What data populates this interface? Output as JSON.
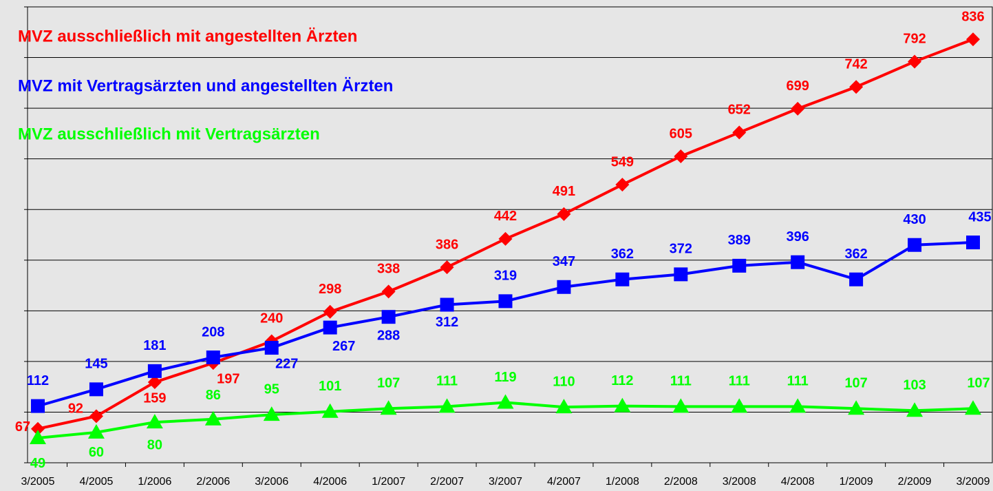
{
  "chart_data": {
    "type": "line",
    "categories": [
      "3/2005",
      "4/2005",
      "1/2006",
      "2/2006",
      "3/2006",
      "4/2006",
      "1/2007",
      "2/2007",
      "3/2007",
      "4/2007",
      "1/2008",
      "2/2008",
      "3/2008",
      "4/2008",
      "1/2009",
      "2/2009",
      "3/2009"
    ],
    "series": [
      {
        "name": "MVZ ausschließlich mit angestellten Ärzten",
        "color": "#ff0000",
        "marker": "diamond",
        "values": [
          67,
          92,
          159,
          197,
          240,
          298,
          338,
          386,
          442,
          491,
          549,
          605,
          652,
          699,
          742,
          792,
          836
        ]
      },
      {
        "name": "MVZ mit Vertragsärzten und angestellten Ärzten",
        "color": "#0000ff",
        "marker": "square",
        "values": [
          112,
          145,
          181,
          208,
          227,
          267,
          288,
          312,
          319,
          347,
          362,
          372,
          389,
          396,
          362,
          430,
          435
        ]
      },
      {
        "name": "MVZ ausschließlich mit Vertragsärzten",
        "color": "#00ff00",
        "marker": "triangle",
        "values": [
          49,
          60,
          80,
          86,
          95,
          101,
          107,
          111,
          119,
          110,
          112,
          111,
          111,
          111,
          107,
          103,
          107
        ]
      }
    ],
    "ylim": [
      0,
      900
    ],
    "yticks": [
      0,
      100,
      200,
      300,
      400,
      500,
      600,
      700,
      800,
      900
    ],
    "grid": true
  }
}
